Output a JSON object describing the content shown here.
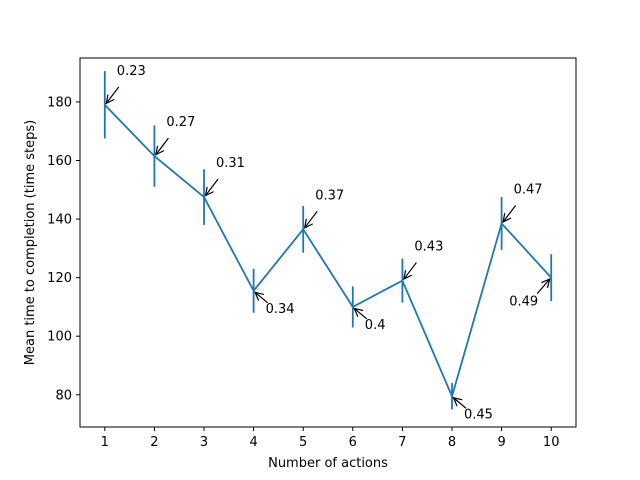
{
  "chart_data": {
    "type": "line",
    "x": [
      1,
      2,
      3,
      4,
      5,
      6,
      7,
      8,
      9,
      10
    ],
    "values": [
      179,
      161.5,
      147.5,
      115.5,
      136.5,
      110,
      119,
      79.5,
      138.5,
      120
    ],
    "errors": [
      11.5,
      10.5,
      9.5,
      7.5,
      8,
      7,
      7.5,
      4.5,
      9,
      8
    ],
    "annotations": [
      "0.23",
      "0.27",
      "0.31",
      "0.34",
      "0.37",
      "0.4",
      "0.43",
      "0.45",
      "0.47",
      "0.49"
    ],
    "xlabel": "Number of actions",
    "ylabel": "Mean time to completion (time steps)",
    "xlim": [
      0.5,
      10.5
    ],
    "ylim": [
      69,
      195
    ],
    "xticks": [
      1,
      2,
      3,
      4,
      5,
      6,
      7,
      8,
      9,
      10
    ],
    "yticks": [
      80,
      100,
      120,
      140,
      160,
      180
    ],
    "grid": false,
    "colors": {
      "line": "#1f77b4",
      "axes": "#000000"
    }
  }
}
